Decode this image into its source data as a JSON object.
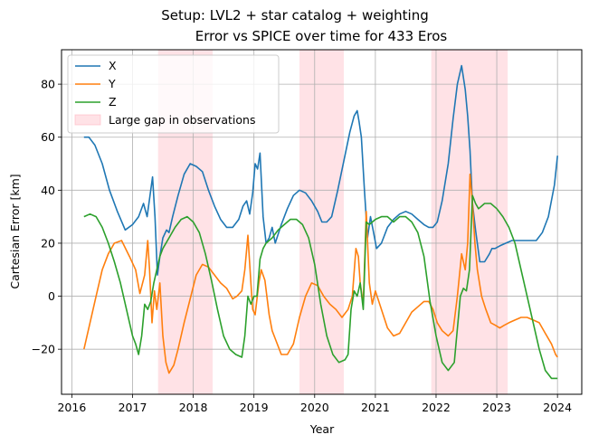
{
  "chart_data": {
    "type": "line",
    "suptitle": "Setup: LVL2 + star catalog + weighting",
    "title": "Error vs SPICE over time for 433 Eros",
    "xlabel": "Year",
    "ylabel": "Cartesian Error [km]",
    "xlim": [
      2015.83,
      2024.4
    ],
    "ylim": [
      -37,
      93
    ],
    "xticks": [
      2016,
      2017,
      2018,
      2019,
      2020,
      2021,
      2022,
      2023,
      2024
    ],
    "yticks": [
      -20,
      0,
      20,
      40,
      60,
      80
    ],
    "grid": true,
    "legend_position": "upper-left",
    "shaded_label": "Large gap in observations",
    "shaded_color": "#ffb6c1",
    "shaded_regions": [
      [
        2017.42,
        2018.32
      ],
      [
        2019.75,
        2020.48
      ],
      [
        2021.92,
        2023.18
      ]
    ],
    "series": [
      {
        "name": "X",
        "color": "#1f77b4",
        "x": [
          2016.2,
          2016.28,
          2016.38,
          2016.5,
          2016.62,
          2016.75,
          2016.88,
          2017.0,
          2017.1,
          2017.18,
          2017.24,
          2017.3,
          2017.33,
          2017.37,
          2017.41,
          2017.45,
          2017.5,
          2017.56,
          2017.6,
          2017.66,
          2017.75,
          2017.85,
          2017.95,
          2018.05,
          2018.15,
          2018.25,
          2018.35,
          2018.45,
          2018.55,
          2018.65,
          2018.75,
          2018.82,
          2018.88,
          2018.93,
          2018.98,
          2019.02,
          2019.06,
          2019.1,
          2019.15,
          2019.2,
          2019.25,
          2019.3,
          2019.35,
          2019.45,
          2019.55,
          2019.65,
          2019.75,
          2019.85,
          2019.95,
          2020.05,
          2020.12,
          2020.2,
          2020.28,
          2020.38,
          2020.48,
          2020.58,
          2020.65,
          2020.7,
          2020.73,
          2020.77,
          2020.82,
          2020.87,
          2020.92,
          2020.97,
          2021.02,
          2021.1,
          2021.2,
          2021.3,
          2021.4,
          2021.5,
          2021.6,
          2021.7,
          2021.8,
          2021.88,
          2021.95,
          2022.02,
          2022.1,
          2022.2,
          2022.28,
          2022.35,
          2022.42,
          2022.48,
          2022.52,
          2022.56,
          2022.6,
          2022.65,
          2022.72,
          2022.8,
          2022.88,
          2022.92,
          2022.97,
          2023.05,
          2023.15,
          2023.25,
          2023.35,
          2023.45,
          2023.55,
          2023.65,
          2023.75,
          2023.85,
          2023.95,
          2024.0
        ],
        "values": [
          60,
          60,
          57,
          50,
          40,
          32,
          25,
          27,
          30,
          35,
          30,
          40,
          45,
          30,
          8,
          15,
          22,
          25,
          24,
          30,
          38,
          46,
          50,
          49,
          47,
          40,
          34,
          29,
          26,
          26,
          29,
          34,
          36,
          31,
          39,
          50,
          48,
          54,
          30,
          20,
          22,
          26,
          20,
          27,
          33,
          38,
          40,
          39,
          36,
          32,
          28,
          28,
          30,
          40,
          51,
          62,
          68,
          70,
          66,
          60,
          40,
          22,
          30,
          24,
          18,
          20,
          26,
          29,
          31,
          32,
          31,
          29,
          27,
          26,
          26,
          28,
          36,
          50,
          67,
          80,
          87,
          78,
          68,
          55,
          35,
          25,
          13,
          13,
          16,
          18,
          18,
          19,
          20,
          21,
          21,
          21,
          21,
          21,
          24,
          30,
          42,
          53
        ]
      },
      {
        "name": "Y",
        "color": "#ff7f0e",
        "x": [
          2016.2,
          2016.3,
          2016.4,
          2016.5,
          2016.6,
          2016.7,
          2016.82,
          2016.95,
          2017.05,
          2017.12,
          2017.2,
          2017.25,
          2017.28,
          2017.32,
          2017.36,
          2017.4,
          2017.45,
          2017.5,
          2017.55,
          2017.6,
          2017.68,
          2017.75,
          2017.85,
          2017.95,
          2018.05,
          2018.15,
          2018.25,
          2018.35,
          2018.45,
          2018.55,
          2018.65,
          2018.72,
          2018.8,
          2018.85,
          2018.9,
          2018.95,
          2018.98,
          2019.02,
          2019.08,
          2019.12,
          2019.18,
          2019.25,
          2019.3,
          2019.35,
          2019.45,
          2019.55,
          2019.65,
          2019.75,
          2019.85,
          2019.95,
          2020.05,
          2020.15,
          2020.25,
          2020.35,
          2020.45,
          2020.55,
          2020.62,
          2020.68,
          2020.72,
          2020.75,
          2020.8,
          2020.85,
          2020.9,
          2020.95,
          2021.0,
          2021.1,
          2021.2,
          2021.3,
          2021.4,
          2021.5,
          2021.6,
          2021.7,
          2021.8,
          2021.88,
          2021.95,
          2022.02,
          2022.1,
          2022.2,
          2022.28,
          2022.35,
          2022.42,
          2022.48,
          2022.52,
          2022.56,
          2022.6,
          2022.64,
          2022.68,
          2022.75,
          2022.82,
          2022.9,
          2022.98,
          2023.05,
          2023.12,
          2023.2,
          2023.3,
          2023.4,
          2023.5,
          2023.6,
          2023.7,
          2023.8,
          2023.9,
          2023.97,
          2024.0
        ],
        "values": [
          -20,
          -10,
          0,
          10,
          16,
          20,
          21,
          15,
          10,
          1,
          8,
          21,
          10,
          -10,
          2,
          -5,
          5,
          -15,
          -25,
          -29,
          -26,
          -20,
          -10,
          -1,
          8,
          12,
          11,
          8,
          5,
          3,
          -1,
          0,
          2,
          10,
          23,
          5,
          -5,
          -7,
          5,
          10,
          6,
          -7,
          -13,
          -16,
          -22,
          -22,
          -18,
          -8,
          0,
          5,
          4,
          0,
          -3,
          -5,
          -8,
          -5,
          0,
          18,
          15,
          5,
          -3,
          32,
          5,
          -3,
          2,
          -5,
          -12,
          -15,
          -14,
          -10,
          -6,
          -4,
          -2,
          -2,
          -5,
          -10,
          -13,
          -15,
          -13,
          0,
          16,
          10,
          20,
          46,
          35,
          20,
          10,
          0,
          -5,
          -10,
          -11,
          -12,
          -11,
          -10,
          -9,
          -8,
          -8,
          -9,
          -10,
          -14,
          -18,
          -22,
          -23
        ]
      },
      {
        "name": "Z",
        "color": "#2ca02c",
        "x": [
          2016.2,
          2016.3,
          2016.4,
          2016.5,
          2016.6,
          2016.7,
          2016.8,
          2016.9,
          2017.0,
          2017.05,
          2017.1,
          2017.15,
          2017.2,
          2017.25,
          2017.3,
          2017.35,
          2017.4,
          2017.45,
          2017.5,
          2017.6,
          2017.7,
          2017.8,
          2017.9,
          2018.0,
          2018.1,
          2018.2,
          2018.3,
          2018.4,
          2018.5,
          2018.6,
          2018.7,
          2018.8,
          2018.85,
          2018.9,
          2018.95,
          2019.0,
          2019.05,
          2019.1,
          2019.15,
          2019.2,
          2019.3,
          2019.4,
          2019.5,
          2019.6,
          2019.7,
          2019.8,
          2019.9,
          2020.0,
          2020.1,
          2020.2,
          2020.3,
          2020.4,
          2020.5,
          2020.55,
          2020.6,
          2020.65,
          2020.7,
          2020.75,
          2020.8,
          2020.85,
          2020.9,
          2020.95,
          2021.0,
          2021.1,
          2021.2,
          2021.3,
          2021.4,
          2021.5,
          2021.6,
          2021.7,
          2021.8,
          2021.9,
          2022.0,
          2022.1,
          2022.2,
          2022.3,
          2022.4,
          2022.45,
          2022.5,
          2022.55,
          2022.6,
          2022.65,
          2022.7,
          2022.75,
          2022.8,
          2022.9,
          2023.0,
          2023.1,
          2023.2,
          2023.3,
          2023.4,
          2023.5,
          2023.6,
          2023.7,
          2023.8,
          2023.9,
          2024.0
        ],
        "values": [
          30,
          31,
          30,
          26,
          20,
          13,
          5,
          -5,
          -15,
          -18,
          -22,
          -15,
          -3,
          -5,
          -2,
          5,
          10,
          15,
          18,
          22,
          26,
          29,
          30,
          28,
          24,
          16,
          6,
          -5,
          -15,
          -20,
          -22,
          -23,
          -15,
          0,
          -3,
          0,
          0,
          14,
          18,
          20,
          22,
          25,
          27,
          29,
          29,
          27,
          22,
          12,
          -3,
          -15,
          -22,
          -25,
          -24,
          -22,
          -5,
          2,
          0,
          5,
          -5,
          28,
          27,
          28,
          29,
          30,
          30,
          28,
          30,
          30,
          28,
          24,
          15,
          -2,
          -15,
          -25,
          -28,
          -25,
          0,
          3,
          2,
          10,
          38,
          35,
          33,
          34,
          35,
          35,
          33,
          30,
          26,
          20,
          10,
          0,
          -10,
          -20,
          -28,
          -31,
          -31
        ]
      }
    ]
  }
}
